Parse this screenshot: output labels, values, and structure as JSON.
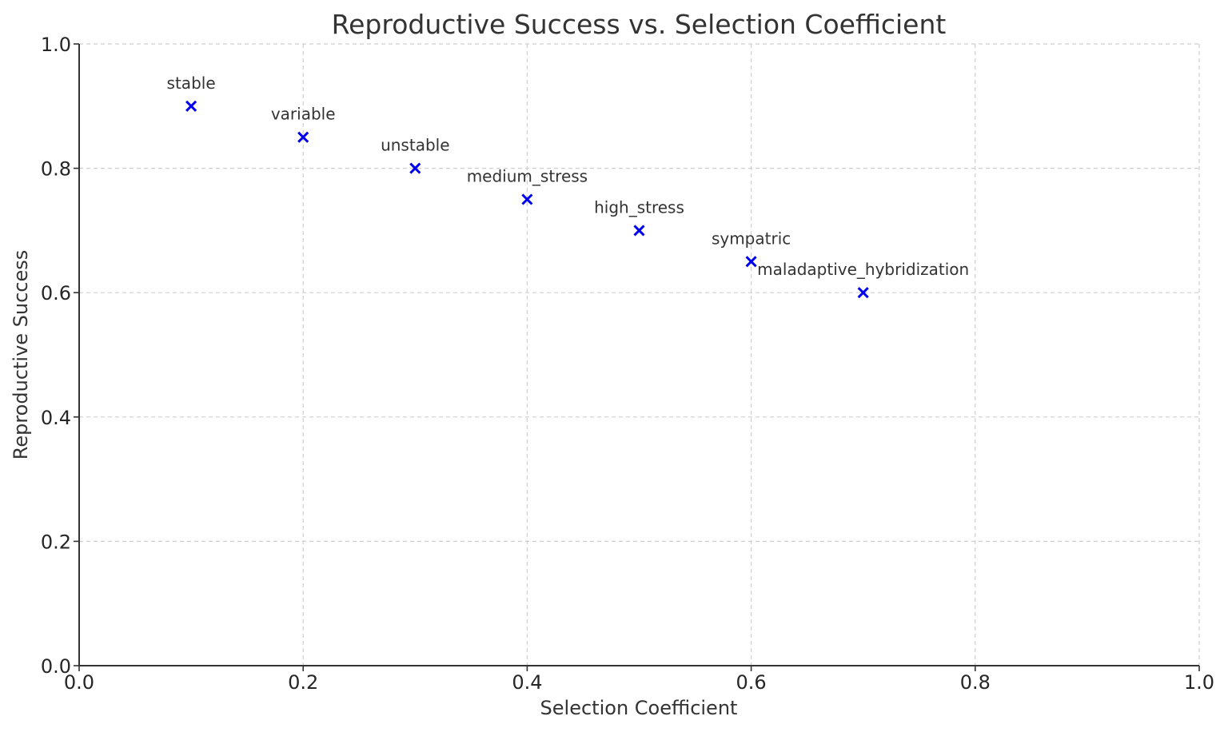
{
  "chart_data": {
    "type": "scatter",
    "title": "Reproductive Success vs. Selection Coefficient",
    "xlabel": "Selection Coefficient",
    "ylabel": "Reproductive Success",
    "xlim": [
      0.0,
      1.0
    ],
    "ylim": [
      0.0,
      1.0
    ],
    "xticks": [
      "0.0",
      "0.2",
      "0.4",
      "0.6",
      "0.8",
      "1.0"
    ],
    "yticks": [
      "0.0",
      "0.2",
      "0.4",
      "0.6",
      "0.8",
      "1.0"
    ],
    "grid": true,
    "marker": "x",
    "color": "#0000ee",
    "points": [
      {
        "label": "stable",
        "x": 0.1,
        "y": 0.9
      },
      {
        "label": "variable",
        "x": 0.2,
        "y": 0.85
      },
      {
        "label": "unstable",
        "x": 0.3,
        "y": 0.8
      },
      {
        "label": "medium_stress",
        "x": 0.4,
        "y": 0.75
      },
      {
        "label": "high_stress",
        "x": 0.5,
        "y": 0.7
      },
      {
        "label": "sympatric",
        "x": 0.6,
        "y": 0.65
      },
      {
        "label": "maladaptive_hybridization",
        "x": 0.7,
        "y": 0.6
      }
    ]
  }
}
